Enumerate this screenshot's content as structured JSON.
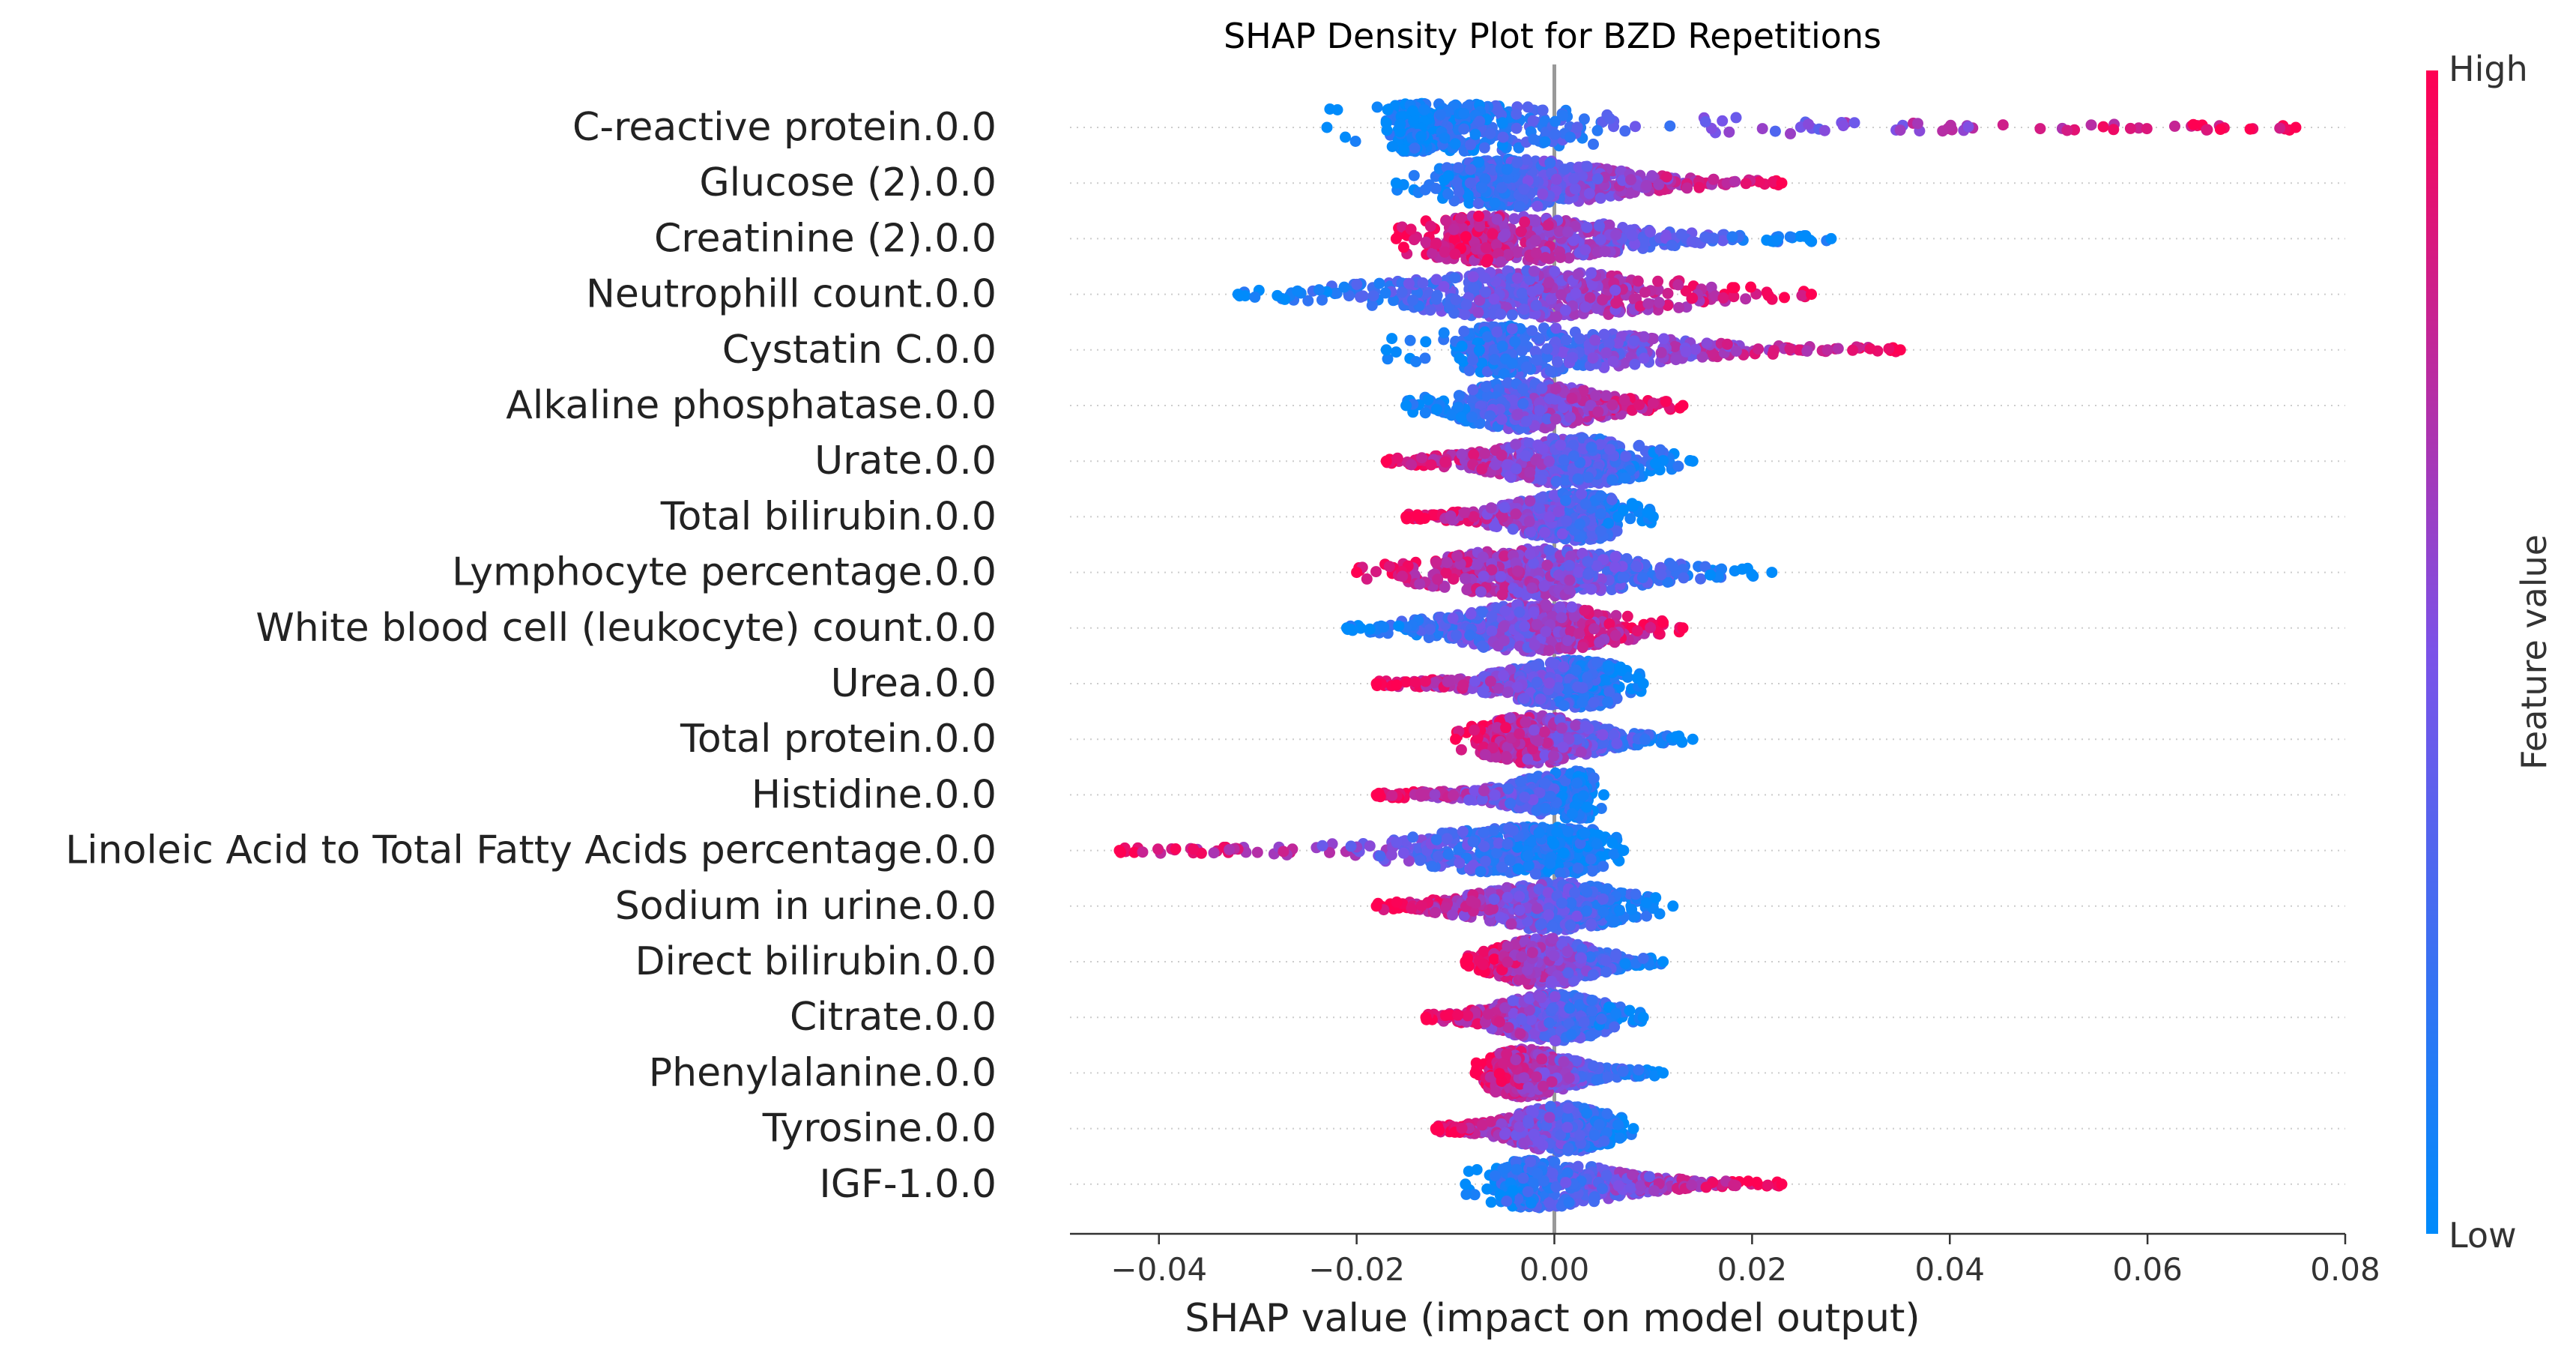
{
  "chart_data": {
    "type": "beeswarm",
    "title": "SHAP Density Plot for BZD Repetitions",
    "xlabel": "SHAP value (impact on model output)",
    "xlim": [
      -0.049,
      0.08
    ],
    "xticks": [
      -0.04,
      -0.02,
      0.0,
      0.02,
      0.04,
      0.06,
      0.08
    ],
    "xtick_labels": [
      "−0.04",
      "−0.02",
      "0.00",
      "0.02",
      "0.04",
      "0.06",
      "0.08"
    ],
    "colorbar": {
      "label": "Feature value",
      "high_label": "High",
      "low_label": "Low",
      "low_color": "#008bfb",
      "high_color": "#ff0052"
    },
    "features": [
      {
        "name": "C-reactive protein.0.0",
        "min": -0.023,
        "max": 0.075,
        "core_min": -0.017,
        "core_max": 0.006,
        "peak": -0.013,
        "color_trend": "positive"
      },
      {
        "name": "Glucose (2).0.0",
        "min": -0.016,
        "max": 0.023,
        "core_min": -0.012,
        "core_max": 0.016,
        "peak": -0.004,
        "color_trend": "positive"
      },
      {
        "name": "Creatinine (2).0.0",
        "min": -0.016,
        "max": 0.028,
        "core_min": -0.013,
        "core_max": 0.018,
        "peak": -0.005,
        "color_trend": "negative"
      },
      {
        "name": "Neutrophill count.0.0",
        "min": -0.032,
        "max": 0.026,
        "core_min": -0.022,
        "core_max": 0.018,
        "peak": -0.002,
        "color_trend": "positive"
      },
      {
        "name": "Cystatin C.0.0",
        "min": -0.017,
        "max": 0.035,
        "core_min": -0.01,
        "core_max": 0.024,
        "peak": -0.004,
        "color_trend": "positive"
      },
      {
        "name": "Alkaline phosphatase.0.0",
        "min": -0.015,
        "max": 0.013,
        "core_min": -0.01,
        "core_max": 0.01,
        "peak": -0.003,
        "color_trend": "positive"
      },
      {
        "name": "Urate.0.0",
        "min": -0.017,
        "max": 0.014,
        "core_min": -0.014,
        "core_max": 0.011,
        "peak": 0.002,
        "color_trend": "negative"
      },
      {
        "name": "Total bilirubin.0.0",
        "min": -0.015,
        "max": 0.01,
        "core_min": -0.012,
        "core_max": 0.007,
        "peak": 0.002,
        "color_trend": "negative"
      },
      {
        "name": "Lymphocyte percentage.0.0",
        "min": -0.02,
        "max": 0.022,
        "core_min": -0.016,
        "core_max": 0.016,
        "peak": -0.002,
        "color_trend": "negative"
      },
      {
        "name": "White blood cell (leukocyte) count.0.0",
        "min": -0.021,
        "max": 0.013,
        "core_min": -0.015,
        "core_max": 0.011,
        "peak": -0.002,
        "color_trend": "positive"
      },
      {
        "name": "Urea.0.0",
        "min": -0.018,
        "max": 0.009,
        "core_min": -0.014,
        "core_max": 0.007,
        "peak": 0.002,
        "color_trend": "negative"
      },
      {
        "name": "Total protein.0.0",
        "min": -0.01,
        "max": 0.014,
        "core_min": -0.008,
        "core_max": 0.012,
        "peak": -0.002,
        "color_trend": "negative"
      },
      {
        "name": "Histidine.0.0",
        "min": -0.018,
        "max": 0.005,
        "core_min": -0.013,
        "core_max": 0.004,
        "peak": 0.002,
        "color_trend": "negative"
      },
      {
        "name": "Linoleic Acid to Total Fatty Acids percentage.0.0",
        "min": -0.044,
        "max": 0.007,
        "core_min": -0.02,
        "core_max": 0.006,
        "peak": -0.002,
        "color_trend": "negative"
      },
      {
        "name": "Sodium in urine.0.0",
        "min": -0.018,
        "max": 0.012,
        "core_min": -0.014,
        "core_max": 0.01,
        "peak": 0.0,
        "color_trend": "negative"
      },
      {
        "name": "Direct bilirubin.0.0",
        "min": -0.009,
        "max": 0.011,
        "core_min": -0.008,
        "core_max": 0.009,
        "peak": -0.001,
        "color_trend": "negative"
      },
      {
        "name": "Citrate.0.0",
        "min": -0.013,
        "max": 0.009,
        "core_min": -0.011,
        "core_max": 0.007,
        "peak": 0.0,
        "color_trend": "negative"
      },
      {
        "name": "Phenylalanine.0.0",
        "min": -0.008,
        "max": 0.011,
        "core_min": -0.007,
        "core_max": 0.009,
        "peak": -0.003,
        "color_trend": "negative"
      },
      {
        "name": "Tyrosine.0.0",
        "min": -0.012,
        "max": 0.008,
        "core_min": -0.01,
        "core_max": 0.007,
        "peak": 0.001,
        "color_trend": "negative"
      },
      {
        "name": "IGF-1.0.0",
        "min": -0.009,
        "max": 0.023,
        "core_min": -0.006,
        "core_max": 0.018,
        "peak": -0.002,
        "color_trend": "positive"
      }
    ]
  }
}
